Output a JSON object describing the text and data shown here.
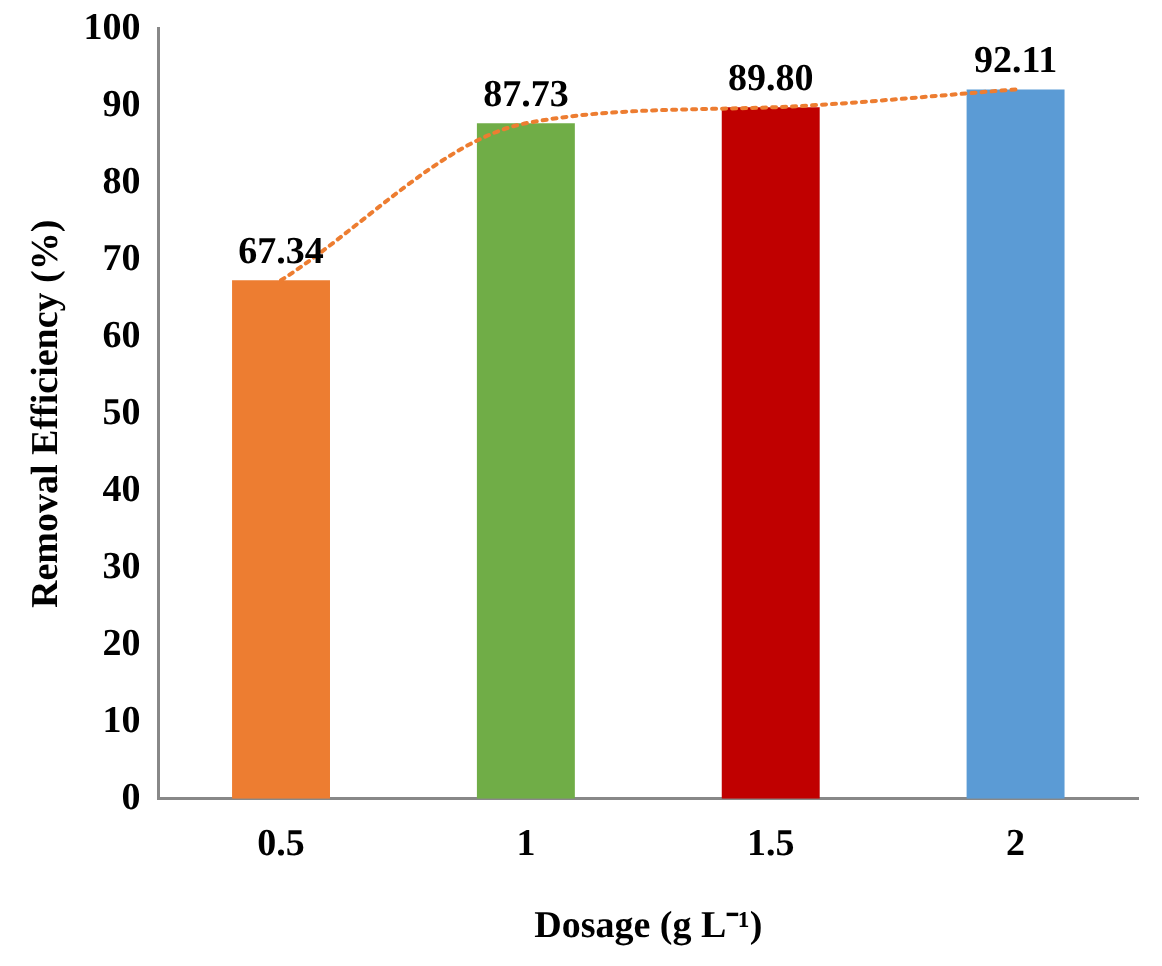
{
  "chart_data": {
    "type": "bar",
    "xlabel": "Dosage (g L⁻¹)",
    "ylabel": "Removal Efficiency (%)",
    "categories": [
      "0.5",
      "1",
      "1.5",
      "2"
    ],
    "series": [
      {
        "colors": [
          "#ed7d31",
          "#70ad47",
          "#c00000",
          "#5b9bd5"
        ],
        "values": [
          67.34,
          87.73,
          89.8,
          92.11
        ],
        "value_labels": [
          "67.34",
          "87.73",
          "89.80",
          "92.11"
        ]
      },
      {
        "type": "line",
        "color": "#ed7d31",
        "values": [
          67.34,
          87.73,
          89.8,
          92.11
        ],
        "line_style": "dotted",
        "marker": "none"
      }
    ],
    "ylim": [
      0,
      100
    ],
    "yticks": [
      0,
      10,
      20,
      30,
      40,
      50,
      60,
      70,
      80,
      90,
      100
    ],
    "grid": false,
    "legend": false
  }
}
